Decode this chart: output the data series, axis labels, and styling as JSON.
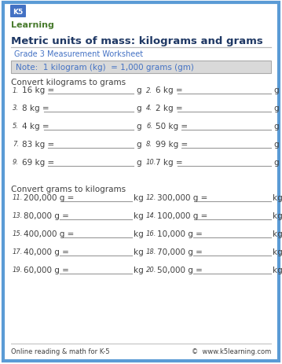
{
  "title": "Metric units of mass: kilograms and grams",
  "subtitle": "Grade 3 Measurement Worksheet",
  "note": "Note:  1 kilogram (kg)  = 1,000 grams (gm)",
  "section1_header": "Convert kilograms to grams",
  "section2_header": "Convert grams to kilograms",
  "section1_problems": [
    [
      "1.",
      "16 kg =",
      "g"
    ],
    [
      "3.",
      "8 kg =",
      "g"
    ],
    [
      "5.",
      "4 kg =",
      "g"
    ],
    [
      "7.",
      "83 kg =",
      "g"
    ],
    [
      "9.",
      "69 kg =",
      "g"
    ]
  ],
  "section1_problems_right": [
    [
      "2.",
      "6 kg =",
      "g"
    ],
    [
      "4.",
      "2 kg =",
      "g"
    ],
    [
      "6.",
      "50 kg =",
      "g"
    ],
    [
      "8.",
      "99 kg =",
      "g"
    ],
    [
      "10.",
      "7 kg =",
      "g"
    ]
  ],
  "section2_problems": [
    [
      "11.",
      "200,000 g =",
      "kg"
    ],
    [
      "13.",
      "80,000 g =",
      "kg"
    ],
    [
      "15.",
      "400,000 g =",
      "kg"
    ],
    [
      "17.",
      "40,000 g =",
      "kg"
    ],
    [
      "19.",
      "60,000 g =",
      "kg"
    ]
  ],
  "section2_problems_right": [
    [
      "12.",
      "300,000 g =",
      "kg"
    ],
    [
      "14.",
      "100,000 g =",
      "kg"
    ],
    [
      "16.",
      "10,000 g =",
      "kg"
    ],
    [
      "18.",
      "70,000 g =",
      "kg"
    ],
    [
      "20.",
      "50,000 g =",
      "kg"
    ]
  ],
  "footer_left": "Online reading & math for K-5",
  "footer_right": "©  www.k5learning.com",
  "border_color": "#5b9bd5",
  "title_color": "#1f3864",
  "subtitle_color": "#4472c4",
  "note_bg": "#d9d9d9",
  "note_text_color": "#4472c4",
  "body_text_color": "#404040",
  "section_header_color": "#404040",
  "line_color": "#999999",
  "bg_color": "#ffffff"
}
